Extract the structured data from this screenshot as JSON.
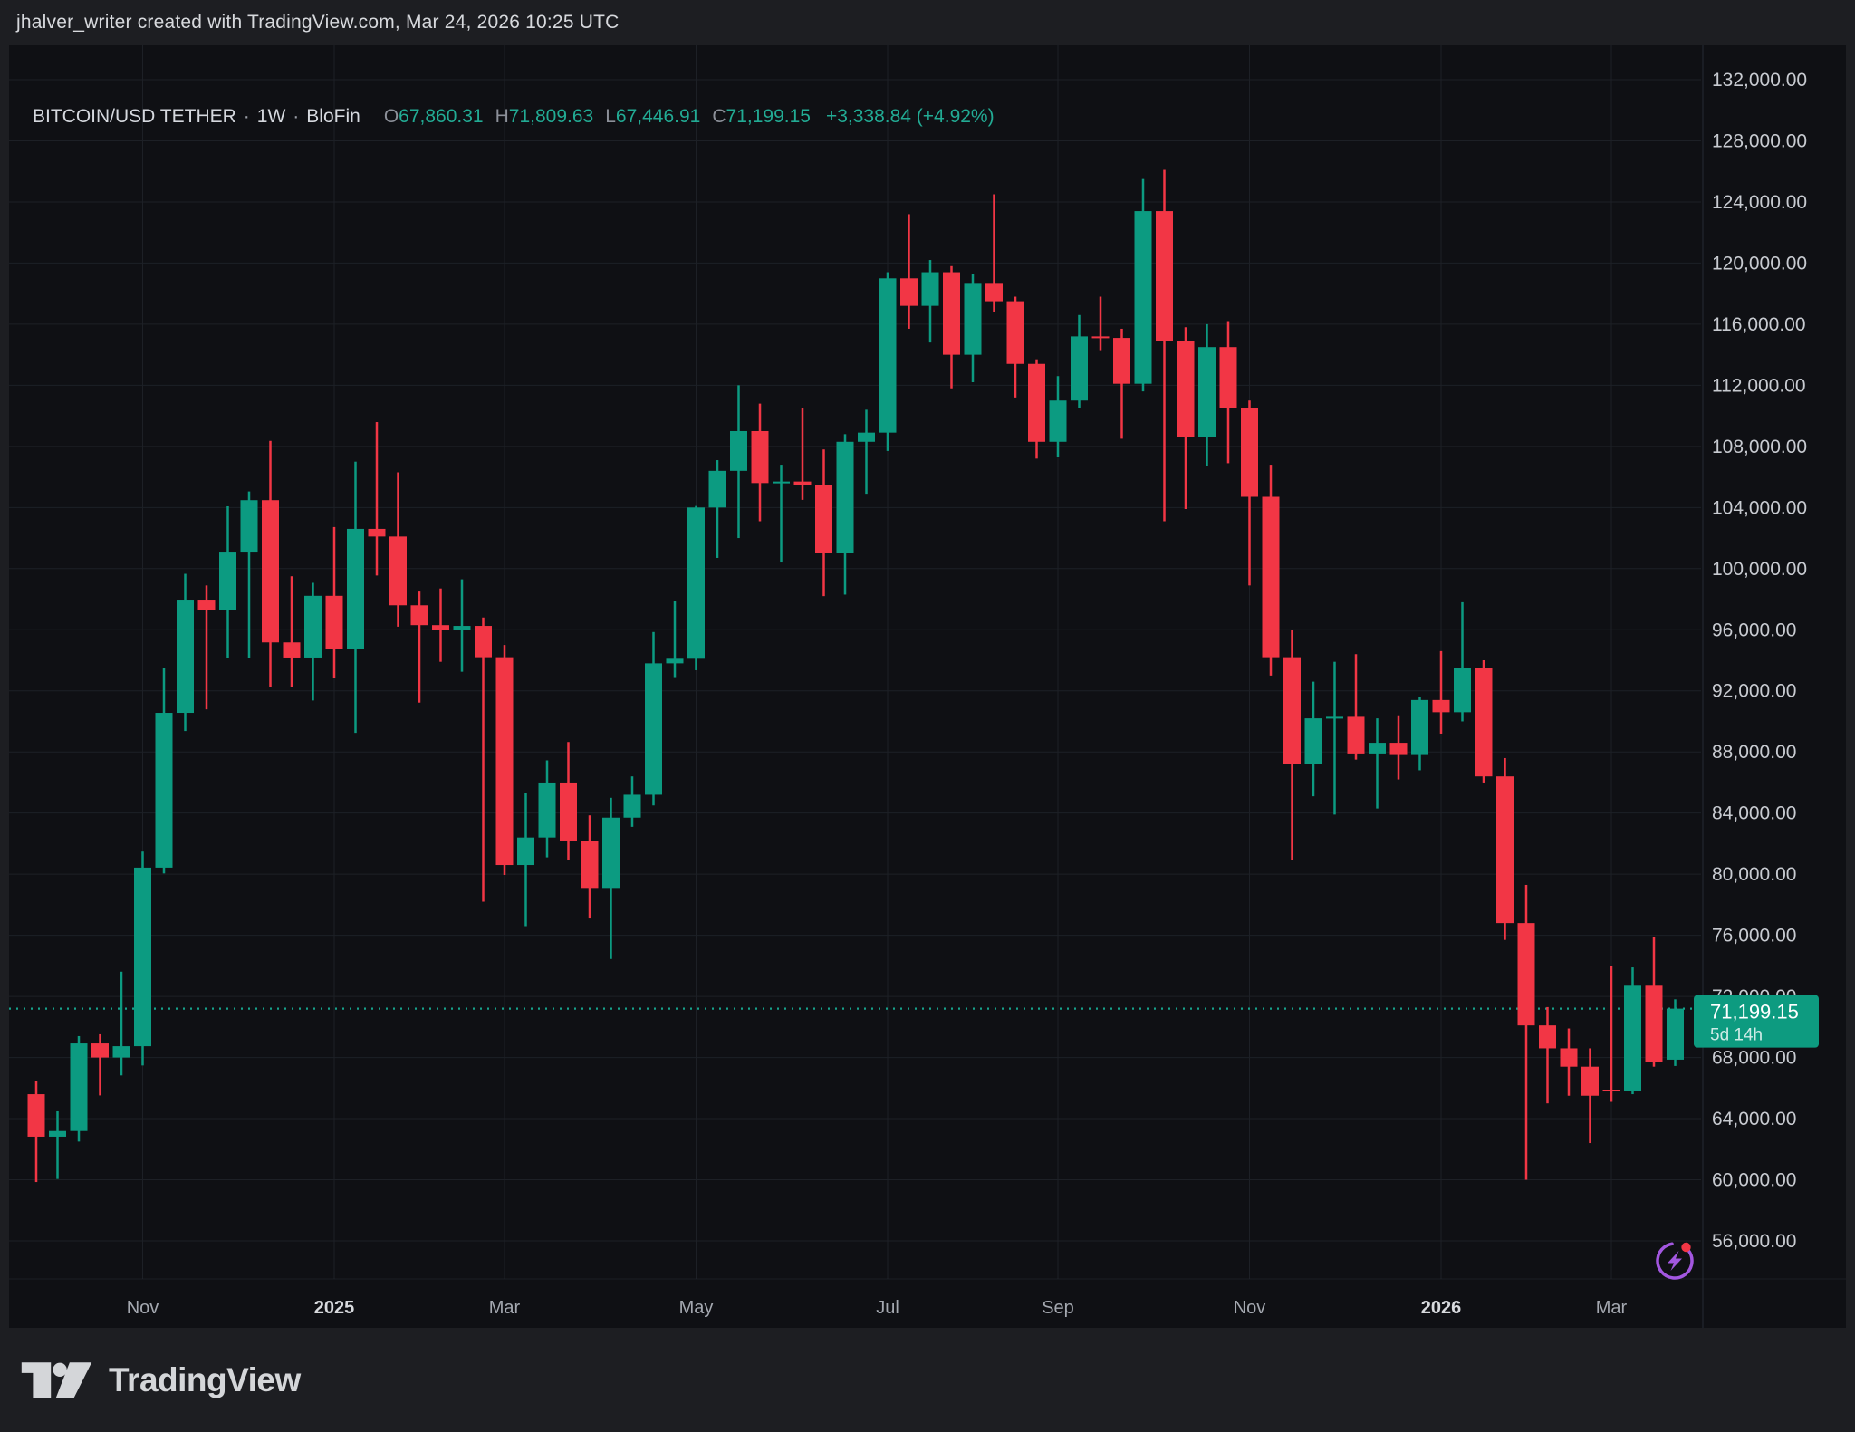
{
  "watermark": "jhalver_writer created with TradingView.com, Mar 24, 2026 10:25 UTC",
  "legend": {
    "symbol": "BITCOIN/USD TETHER",
    "separator": "·",
    "interval": "1W",
    "exchange": "BloFin",
    "ohlc": [
      {
        "label": "O",
        "value": "67,860.31"
      },
      {
        "label": "H",
        "value": "71,809.63"
      },
      {
        "label": "L",
        "value": "67,446.91"
      },
      {
        "label": "C",
        "value": "71,199.15"
      }
    ],
    "change": "+3,338.84 (+4.92%)"
  },
  "price_badge": {
    "price": "71,199.15",
    "countdown": "5d 14h"
  },
  "footer": {
    "logo_text": "TradingView"
  },
  "icons": {
    "bottom_right": "flash-icon",
    "logo_mark": "tradingview-mark-icon"
  },
  "chart_data": {
    "type": "candlestick",
    "title": "BITCOIN/USD TETHER · 1W · BloFin",
    "symbol": "BITCOIN/USD TETHER",
    "exchange": "BloFin",
    "timeframe": "1W",
    "legend_position": "top-left",
    "grid": true,
    "last": {
      "price": 71199.15,
      "change": 3338.84,
      "change_pct": 4.92,
      "countdown": "5d 14h"
    },
    "colors": {
      "up": "#0c9b81",
      "down": "#f23645",
      "badge": "#0d9b80",
      "dotted_line": "#17a28c",
      "grid": "#1d2026",
      "plot_bg": "#0f1014",
      "page_bg": "#1d1e22",
      "axis_text": "#c8cbd1",
      "month_text": "#a4a8b0",
      "year_text": "#d8dade",
      "separator": "#262a33",
      "icon_purple": "#a357e0",
      "icon_dot": "#f23645"
    },
    "y_axis": {
      "side": "right",
      "min": 56000,
      "max": 132000,
      "tick_step": 4000,
      "label_format": "#,##0.00",
      "ticks": [
        132000,
        128000,
        124000,
        120000,
        116000,
        112000,
        108000,
        104000,
        100000,
        96000,
        92000,
        88000,
        84000,
        80000,
        76000,
        72000,
        68000,
        64000,
        60000,
        56000
      ]
    },
    "x_axis": {
      "labels": [
        {
          "label": "Nov",
          "index": 5,
          "year": false
        },
        {
          "label": "2025",
          "index": 14,
          "year": true
        },
        {
          "label": "Mar",
          "index": 22,
          "year": false
        },
        {
          "label": "May",
          "index": 31,
          "year": false
        },
        {
          "label": "Jul",
          "index": 40,
          "year": false
        },
        {
          "label": "Sep",
          "index": 48,
          "year": false
        },
        {
          "label": "Nov",
          "index": 57,
          "year": false
        },
        {
          "label": "2026",
          "index": 66,
          "year": true
        },
        {
          "label": "Mar",
          "index": 74,
          "year": false
        }
      ]
    },
    "candles": [
      [
        "2024-09-30",
        65600,
        66480,
        59850,
        62820
      ],
      [
        "2024-10-07",
        62820,
        64480,
        60050,
        63190
      ],
      [
        "2024-10-14",
        63190,
        69400,
        62500,
        68920
      ],
      [
        "2024-10-21",
        68920,
        69520,
        65520,
        68000
      ],
      [
        "2024-10-28",
        68000,
        73620,
        66830,
        68740
      ],
      [
        "2024-11-04",
        68740,
        81480,
        67480,
        80430
      ],
      [
        "2024-11-11",
        80430,
        93480,
        80050,
        90560
      ],
      [
        "2024-11-18",
        90560,
        99660,
        89370,
        97970
      ],
      [
        "2024-11-25",
        97970,
        98900,
        90790,
        97280
      ],
      [
        "2024-12-02",
        97280,
        104080,
        94150,
        101110
      ],
      [
        "2024-12-09",
        101110,
        105050,
        94150,
        104480
      ],
      [
        "2024-12-16",
        104480,
        108360,
        92230,
        95170
      ],
      [
        "2024-12-23",
        95170,
        99500,
        92230,
        94180
      ],
      [
        "2024-12-30",
        94180,
        99070,
        91370,
        98220
      ],
      [
        "2025-01-06",
        98220,
        102720,
        92870,
        94760
      ],
      [
        "2025-01-13",
        94760,
        107000,
        89250,
        102600
      ],
      [
        "2025-01-20",
        102600,
        109590,
        99550,
        102100
      ],
      [
        "2025-01-27",
        102100,
        106300,
        96200,
        97600
      ],
      [
        "2025-02-03",
        97600,
        98500,
        91230,
        96300
      ],
      [
        "2025-02-10",
        96300,
        98700,
        93900,
        96000
      ],
      [
        "2025-02-17",
        96000,
        99300,
        93250,
        96250
      ],
      [
        "2025-02-24",
        96250,
        96800,
        78200,
        94200
      ],
      [
        "2025-03-03",
        94200,
        95000,
        79950,
        80600
      ],
      [
        "2025-03-10",
        80600,
        85300,
        76600,
        82400
      ],
      [
        "2025-03-17",
        82400,
        87450,
        81100,
        86000
      ],
      [
        "2025-03-24",
        86000,
        88650,
        80900,
        82200
      ],
      [
        "2025-03-31",
        82200,
        83850,
        77100,
        79100
      ],
      [
        "2025-04-07",
        79100,
        85000,
        74450,
        83700
      ],
      [
        "2025-04-14",
        83700,
        86400,
        83100,
        85200
      ],
      [
        "2025-04-21",
        85200,
        95850,
        84500,
        93800
      ],
      [
        "2025-04-28",
        93800,
        97900,
        92900,
        94100
      ],
      [
        "2025-05-05",
        94100,
        104100,
        93350,
        104000
      ],
      [
        "2025-05-12",
        104000,
        107100,
        100700,
        106400
      ],
      [
        "2025-05-19",
        106400,
        112000,
        102000,
        109000
      ],
      [
        "2025-05-26",
        109000,
        110800,
        103100,
        105600
      ],
      [
        "2025-06-02",
        105600,
        106800,
        100400,
        105700
      ],
      [
        "2025-06-09",
        105700,
        110500,
        104500,
        105500
      ],
      [
        "2025-06-16",
        105500,
        107800,
        98200,
        101000
      ],
      [
        "2025-06-23",
        101000,
        108800,
        98300,
        108300
      ],
      [
        "2025-06-30",
        108300,
        110400,
        104900,
        108900
      ],
      [
        "2025-07-07",
        108900,
        119400,
        107700,
        119000
      ],
      [
        "2025-07-14",
        119000,
        123200,
        115700,
        117200
      ],
      [
        "2025-07-21",
        117200,
        120200,
        114800,
        119400
      ],
      [
        "2025-07-28",
        119400,
        119800,
        111800,
        114000
      ],
      [
        "2025-08-04",
        114000,
        119300,
        112200,
        118700
      ],
      [
        "2025-08-11",
        118700,
        124500,
        116800,
        117500
      ],
      [
        "2025-08-18",
        117500,
        117800,
        111200,
        113400
      ],
      [
        "2025-08-25",
        113400,
        113700,
        107200,
        108300
      ],
      [
        "2025-09-01",
        108300,
        112600,
        107300,
        111000
      ],
      [
        "2025-09-08",
        111000,
        116600,
        110500,
        115200
      ],
      [
        "2025-09-15",
        115200,
        117800,
        114300,
        115100
      ],
      [
        "2025-09-22",
        115100,
        115700,
        108500,
        112100
      ],
      [
        "2025-09-29",
        112100,
        125500,
        111600,
        123400
      ],
      [
        "2025-10-06",
        123400,
        126100,
        103100,
        114900
      ],
      [
        "2025-10-13",
        114900,
        115800,
        103900,
        108600
      ],
      [
        "2025-10-20",
        108600,
        116000,
        106700,
        114500
      ],
      [
        "2025-10-27",
        114500,
        116200,
        106900,
        110500
      ],
      [
        "2025-11-03",
        110500,
        111000,
        98900,
        104700
      ],
      [
        "2025-11-10",
        104700,
        106800,
        93000,
        94200
      ],
      [
        "2025-11-17",
        94200,
        96000,
        80900,
        87200
      ],
      [
        "2025-11-24",
        87200,
        92600,
        85100,
        90200
      ],
      [
        "2025-12-01",
        90200,
        93900,
        83900,
        90300
      ],
      [
        "2025-12-08",
        90300,
        94400,
        87500,
        87900
      ],
      [
        "2025-12-15",
        87900,
        90200,
        84300,
        88600
      ],
      [
        "2025-12-22",
        88600,
        90400,
        86200,
        87800
      ],
      [
        "2025-12-29",
        87800,
        91600,
        86800,
        91400
      ],
      [
        "2026-01-05",
        91400,
        94600,
        89200,
        90600
      ],
      [
        "2026-01-12",
        90600,
        97800,
        90000,
        93500
      ],
      [
        "2026-01-19",
        93500,
        94000,
        86000,
        86400
      ],
      [
        "2026-01-26",
        86400,
        87600,
        75700,
        76800
      ],
      [
        "2026-02-02",
        76800,
        79300,
        60000,
        70100
      ],
      [
        "2026-02-09",
        70100,
        71300,
        65000,
        68600
      ],
      [
        "2026-02-16",
        68600,
        69900,
        65500,
        67400
      ],
      [
        "2026-02-23",
        67400,
        68600,
        62400,
        65500
      ],
      [
        "2026-03-02",
        65900,
        74000,
        65100,
        65800
      ],
      [
        "2026-03-09",
        65800,
        73900,
        65600,
        72700
      ],
      [
        "2026-03-16",
        72700,
        75900,
        67400,
        67700
      ],
      [
        "2026-03-23",
        67860.31,
        71809.63,
        67446.91,
        71199.15
      ]
    ]
  }
}
